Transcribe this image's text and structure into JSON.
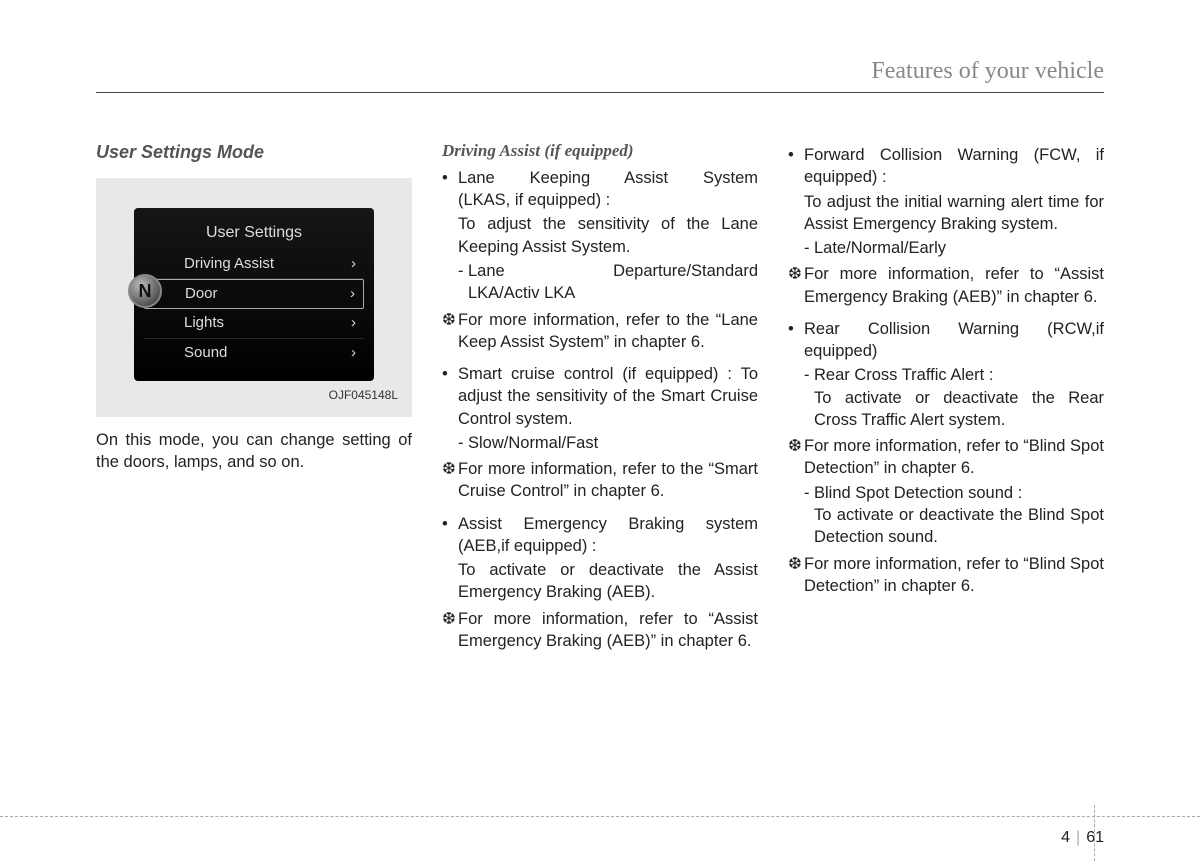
{
  "header": {
    "title": "Features of your vehicle"
  },
  "col1": {
    "title": "User Settings Mode",
    "display": {
      "title": "User Settings",
      "items": [
        "Driving Assist",
        "Door",
        "Lights",
        "Sound"
      ],
      "selected_index": 1,
      "badge": "N"
    },
    "figcode": "OJF045148L",
    "body": "On this mode, you can change setting of the doors, lamps, and so on."
  },
  "col2": {
    "title": "Driving Assist (if equipped)",
    "b1_head_just": "Lane Keeping Assist System",
    "b1_tail": "(LKAS, if equipped) :",
    "b1_sub": "To adjust the sensitivity of the Lane Keeping Assist System.",
    "b1_dash_just": "Lane Departure/Standard",
    "b1_dash_tail": "LKA/Activ LKA",
    "b1_ref": "For more information, refer to the “Lane Keep Assist System” in chapter 6.",
    "b2_head": "Smart cruise control (if equipped) : To adjust the sensitivity of the Smart Cruise Control system.",
    "b2_dash": "Slow/Normal/Fast",
    "b2_ref": "For more information, refer to the “Smart Cruise Control” in chapter 6.",
    "b3_head": "Assist Emergency Braking system (AEB,if equipped) :",
    "b3_sub": "To activate or deactivate the Assist Emergency Braking (AEB).",
    "b3_ref": "For more information, refer to “Assist Emergency Braking (AEB)” in chapter 6."
  },
  "col3": {
    "b1_head": "Forward Collision Warning (FCW, if equipped) :",
    "b1_sub": "To adjust the initial warning alert time for Assist Emergency Braking system.",
    "b1_dash": "Late/Normal/Early",
    "b1_ref": "For more information, refer to “Assist Emergency Braking (AEB)” in chapter 6.",
    "b2_head": "Rear Collision Warning (RCW,if equipped)",
    "b2_dash1_head": "Rear Cross Traffic Alert :",
    "b2_dash1_sub": "To activate or deactivate the Rear Cross Traffic Alert system.",
    "b2_ref1": "For more information, refer to “Blind Spot Detection” in chapter 6.",
    "b2_dash2_head": "Blind Spot Detection sound :",
    "b2_dash2_sub": "To activate or deactivate the Blind Spot Detection sound.",
    "b2_ref2": "For more information, refer to “Blind Spot Detection” in chapter 6."
  },
  "footer": {
    "chapter": "4",
    "page": "61"
  },
  "glyphs": {
    "bullet": "•",
    "ref": "❆",
    "dash": "-",
    "chevron": "›"
  }
}
